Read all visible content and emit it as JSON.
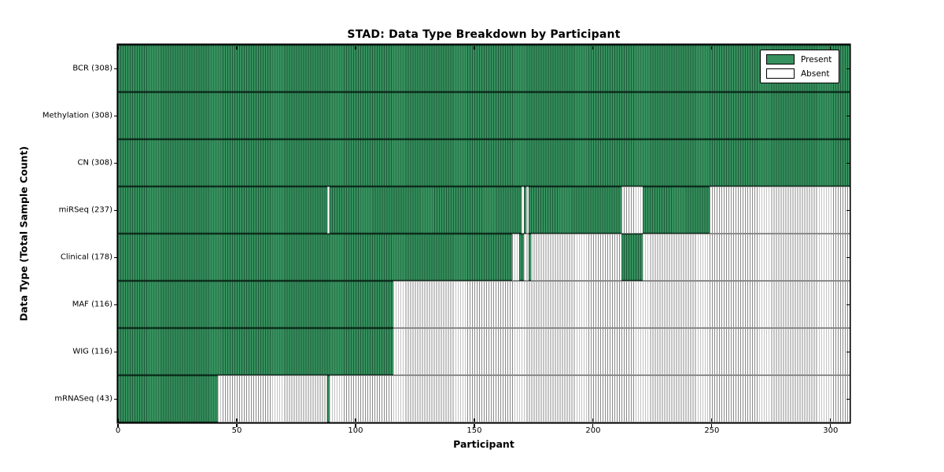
{
  "chart_data": {
    "type": "heatmap",
    "title": "STAD: Data Type Breakdown by Participant",
    "xlabel": "Participant",
    "ylabel": "Data Type (Total Sample Count)",
    "n_participants": 308,
    "x_ticks": [
      0,
      50,
      100,
      150,
      200,
      250,
      300
    ],
    "legend": [
      {
        "label": "Present",
        "color": "#36915e"
      },
      {
        "label": "Absent",
        "color": "#ffffff"
      }
    ],
    "colors": {
      "present": "#36915e",
      "present_edge": "#1e5a3a",
      "absent": "#ffffff",
      "absent_edge": "#8a8a8a",
      "frame": "#000000"
    },
    "rows": [
      {
        "label": "BCR (308)",
        "data_type": "BCR",
        "total": 308,
        "present_ranges": [
          [
            0,
            307
          ]
        ]
      },
      {
        "label": "Methylation (308)",
        "data_type": "Methylation",
        "total": 308,
        "present_ranges": [
          [
            0,
            307
          ]
        ]
      },
      {
        "label": "CN (308)",
        "data_type": "CN",
        "total": 308,
        "present_ranges": [
          [
            0,
            307
          ]
        ]
      },
      {
        "label": "miRSeq (237)",
        "data_type": "miRSeq",
        "total": 237,
        "present_ranges": [
          [
            0,
            87
          ],
          [
            89,
            169
          ],
          [
            171,
            171
          ],
          [
            173,
            211
          ],
          [
            221,
            248
          ]
        ]
      },
      {
        "label": "Clinical (178)",
        "data_type": "Clinical",
        "total": 178,
        "present_ranges": [
          [
            0,
            165
          ],
          [
            169,
            170
          ],
          [
            173,
            173
          ],
          [
            212,
            220
          ]
        ]
      },
      {
        "label": "MAF (116)",
        "data_type": "MAF",
        "total": 116,
        "present_ranges": [
          [
            0,
            115
          ]
        ]
      },
      {
        "label": "WIG (116)",
        "data_type": "WIG",
        "total": 116,
        "present_ranges": [
          [
            0,
            115
          ]
        ]
      },
      {
        "label": "mRNASeq (43)",
        "data_type": "mRNASeq",
        "total": 43,
        "present_ranges": [
          [
            0,
            41
          ],
          [
            88,
            88
          ]
        ]
      }
    ]
  }
}
